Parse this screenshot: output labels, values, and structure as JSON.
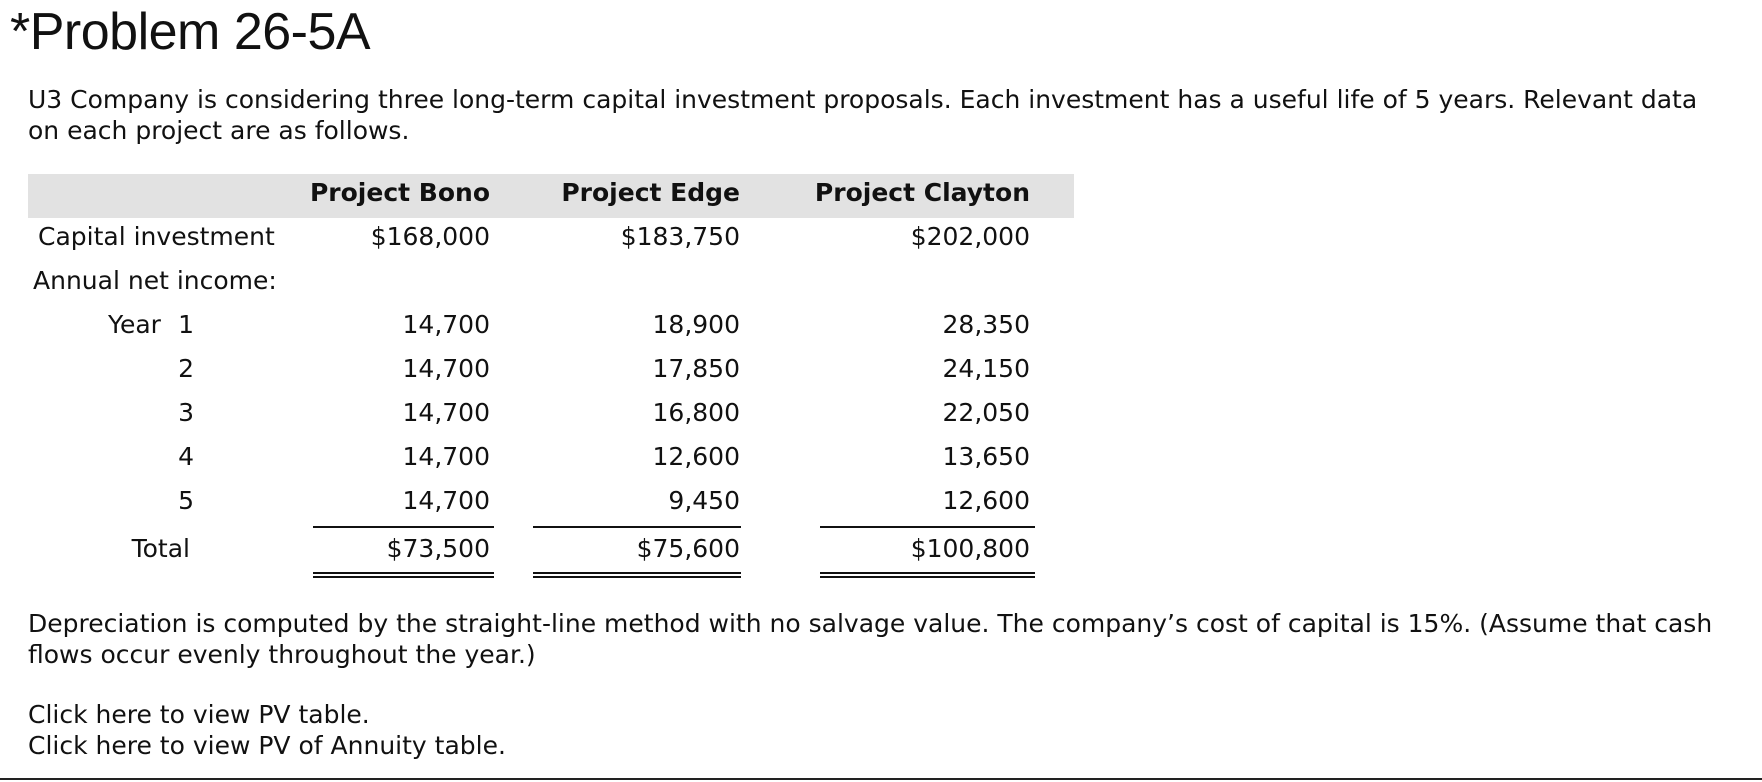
{
  "problem": {
    "title": "*Problem 26-5A",
    "intro": "U3 Company is considering three long-term capital investment proposals. Each investment has a useful life of 5 years. Relevant data on each project are as follows.",
    "table": {
      "headers": [
        "Project Bono",
        "Project Edge",
        "Project Clayton"
      ],
      "capital_investment": {
        "label": "Capital investment",
        "values": [
          "$168,000",
          "$183,750",
          "$202,000"
        ]
      },
      "annual_net_income_label": "Annual net income:",
      "year_label": "Year",
      "years": [
        {
          "year": "1",
          "values": [
            "14,700",
            "18,900",
            "28,350"
          ]
        },
        {
          "year": "2",
          "values": [
            "14,700",
            "17,850",
            "24,150"
          ]
        },
        {
          "year": "3",
          "values": [
            "14,700",
            "16,800",
            "22,050"
          ]
        },
        {
          "year": "4",
          "values": [
            "14,700",
            "12,600",
            "13,650"
          ]
        },
        {
          "year": "5",
          "values": [
            "14,700",
            "9,450",
            "12,600"
          ]
        }
      ],
      "total": {
        "label": "Total",
        "values": [
          "$73,500",
          "$75,600",
          "$100,800"
        ]
      }
    },
    "depreciation_note": "Depreciation is computed by the straight-line method with no salvage value. The company’s cost of capital is 15%. (Assume that cash flows occur evenly throughout the year.)",
    "links": {
      "pv_table": "Click here to view PV table.",
      "pv_annuity_table": "Click here to view PV of Annuity table."
    }
  }
}
